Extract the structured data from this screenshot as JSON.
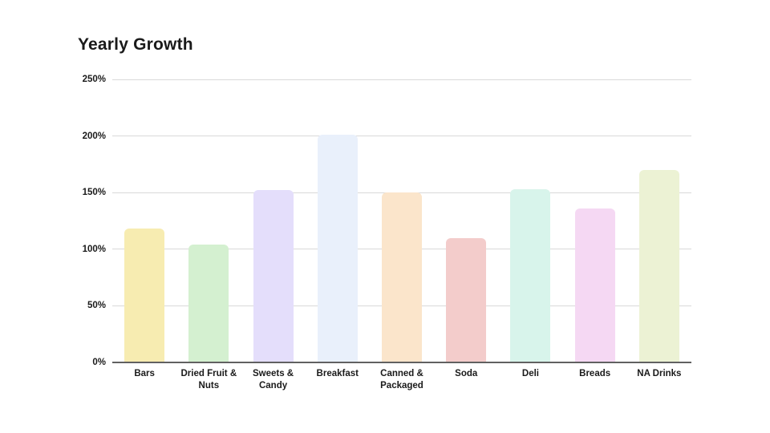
{
  "page": {
    "background": "#ffffff"
  },
  "chart_data": {
    "type": "bar",
    "title": "Yearly Growth",
    "categories": [
      "Bars",
      "Dried Fruit & Nuts",
      "Sweets & Candy",
      "Breakfast",
      "Canned & Packaged",
      "Soda",
      "Deli",
      "Breads",
      "NA Drinks"
    ],
    "values": [
      118,
      104,
      152,
      201,
      150,
      110,
      153,
      136,
      170
    ],
    "unit": "%",
    "bar_colors": [
      "#F7ECB1",
      "#D4F0D0",
      "#E4DEFB",
      "#E9F0FB",
      "#FBE5CB",
      "#F3CCCB",
      "#D8F4EB",
      "#F5D8F3",
      "#ECF2D4"
    ],
    "y_ticks": [
      "0%",
      "50%",
      "100%",
      "150%",
      "200%",
      "250%"
    ],
    "y_tick_values": [
      0,
      50,
      100,
      150,
      200,
      250
    ],
    "ylim": [
      0,
      250
    ],
    "xlabel": "",
    "ylabel": "",
    "grid": true,
    "legend": "none",
    "colors": {
      "gridline": "#d9d9d9",
      "baseline": "#616161",
      "label": "#1a1a1a",
      "title": "#1a1a1a"
    }
  }
}
